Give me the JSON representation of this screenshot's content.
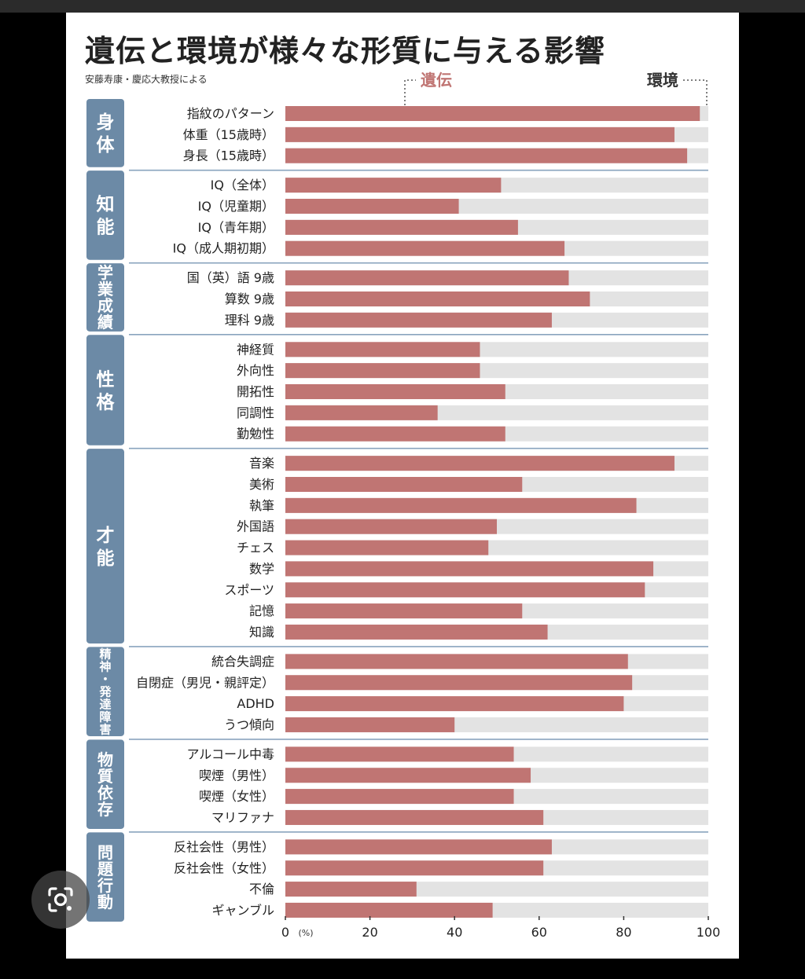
{
  "title": "遺伝と環境が様々な形質に与える影響",
  "subtitle": "安藤寿康・慶応大教授による",
  "legend": {
    "genetic": "遺伝",
    "environment": "環境"
  },
  "colors": {
    "genetic": "#c07573",
    "environment": "#e3e3e3",
    "category": "#6c8aa6",
    "divider": "#8aa4be"
  },
  "ui": {
    "lens_icon": "camera-lens-icon"
  },
  "chart_data": {
    "type": "bar",
    "orientation": "horizontal",
    "stacked": true,
    "xlim": [
      0,
      100
    ],
    "x_ticks": [
      "0",
      "20",
      "40",
      "60",
      "80",
      "100"
    ],
    "x_unit": "(%)",
    "groups": [
      {
        "name": "身体",
        "items": [
          {
            "label": "指紋のパターン",
            "value": 98
          },
          {
            "label": "体重（15歳時）",
            "value": 92
          },
          {
            "label": "身長（15歳時）",
            "value": 95
          }
        ]
      },
      {
        "name": "知能",
        "items": [
          {
            "label": "IQ（全体）",
            "value": 51
          },
          {
            "label": "IQ（児童期）",
            "value": 41
          },
          {
            "label": "IQ（青年期）",
            "value": 55
          },
          {
            "label": "IQ（成人期初期）",
            "value": 66
          }
        ]
      },
      {
        "name": "学業成績",
        "items": [
          {
            "label": "国（英）語 9歳",
            "value": 67
          },
          {
            "label": "算数 9歳",
            "value": 72
          },
          {
            "label": "理科 9歳",
            "value": 63
          }
        ]
      },
      {
        "name": "性格",
        "items": [
          {
            "label": "神経質",
            "value": 46
          },
          {
            "label": "外向性",
            "value": 46
          },
          {
            "label": "開拓性",
            "value": 52
          },
          {
            "label": "同調性",
            "value": 36
          },
          {
            "label": "勤勉性",
            "value": 52
          }
        ]
      },
      {
        "name": "才能",
        "items": [
          {
            "label": "音楽",
            "value": 92
          },
          {
            "label": "美術",
            "value": 56
          },
          {
            "label": "執筆",
            "value": 83
          },
          {
            "label": "外国語",
            "value": 50
          },
          {
            "label": "チェス",
            "value": 48
          },
          {
            "label": "数学",
            "value": 87
          },
          {
            "label": "スポーツ",
            "value": 85
          },
          {
            "label": "記憶",
            "value": 56
          },
          {
            "label": "知識",
            "value": 62
          }
        ]
      },
      {
        "name": "精神・発達障害",
        "items": [
          {
            "label": "統合失調症",
            "value": 81
          },
          {
            "label": "自閉症（男児・親評定）",
            "value": 82
          },
          {
            "label": "ADHD",
            "value": 80
          },
          {
            "label": "うつ傾向",
            "value": 40
          }
        ]
      },
      {
        "name": "物質依存",
        "items": [
          {
            "label": "アルコール中毒",
            "value": 54
          },
          {
            "label": "喫煙（男性）",
            "value": 58
          },
          {
            "label": "喫煙（女性）",
            "value": 54
          },
          {
            "label": "マリファナ",
            "value": 61
          }
        ]
      },
      {
        "name": "問題行動",
        "items": [
          {
            "label": "反社会性（男性）",
            "value": 63
          },
          {
            "label": "反社会性（女性）",
            "value": 61
          },
          {
            "label": "不倫",
            "value": 31
          },
          {
            "label": "ギャンブル",
            "value": 49
          }
        ]
      }
    ]
  }
}
